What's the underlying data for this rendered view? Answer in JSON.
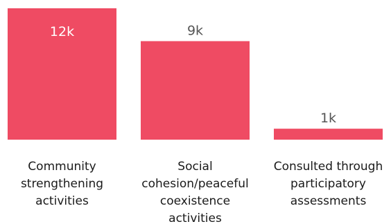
{
  "chart_data": {
    "type": "bar",
    "categories": [
      [
        "Community",
        "strengthening",
        "activities"
      ],
      [
        "Social",
        "cohesion/peaceful",
        "coexistence",
        "activities"
      ],
      [
        "Consulted through",
        "participatory",
        "assessments"
      ]
    ],
    "values": [
      12000,
      9000,
      1000
    ],
    "value_labels": [
      "12k",
      "9k",
      "1k"
    ],
    "ylim": [
      0,
      12000
    ],
    "colors": {
      "bar": "#ef4b63",
      "label_inside": "#ffffff",
      "label_outside": "#555555"
    }
  }
}
